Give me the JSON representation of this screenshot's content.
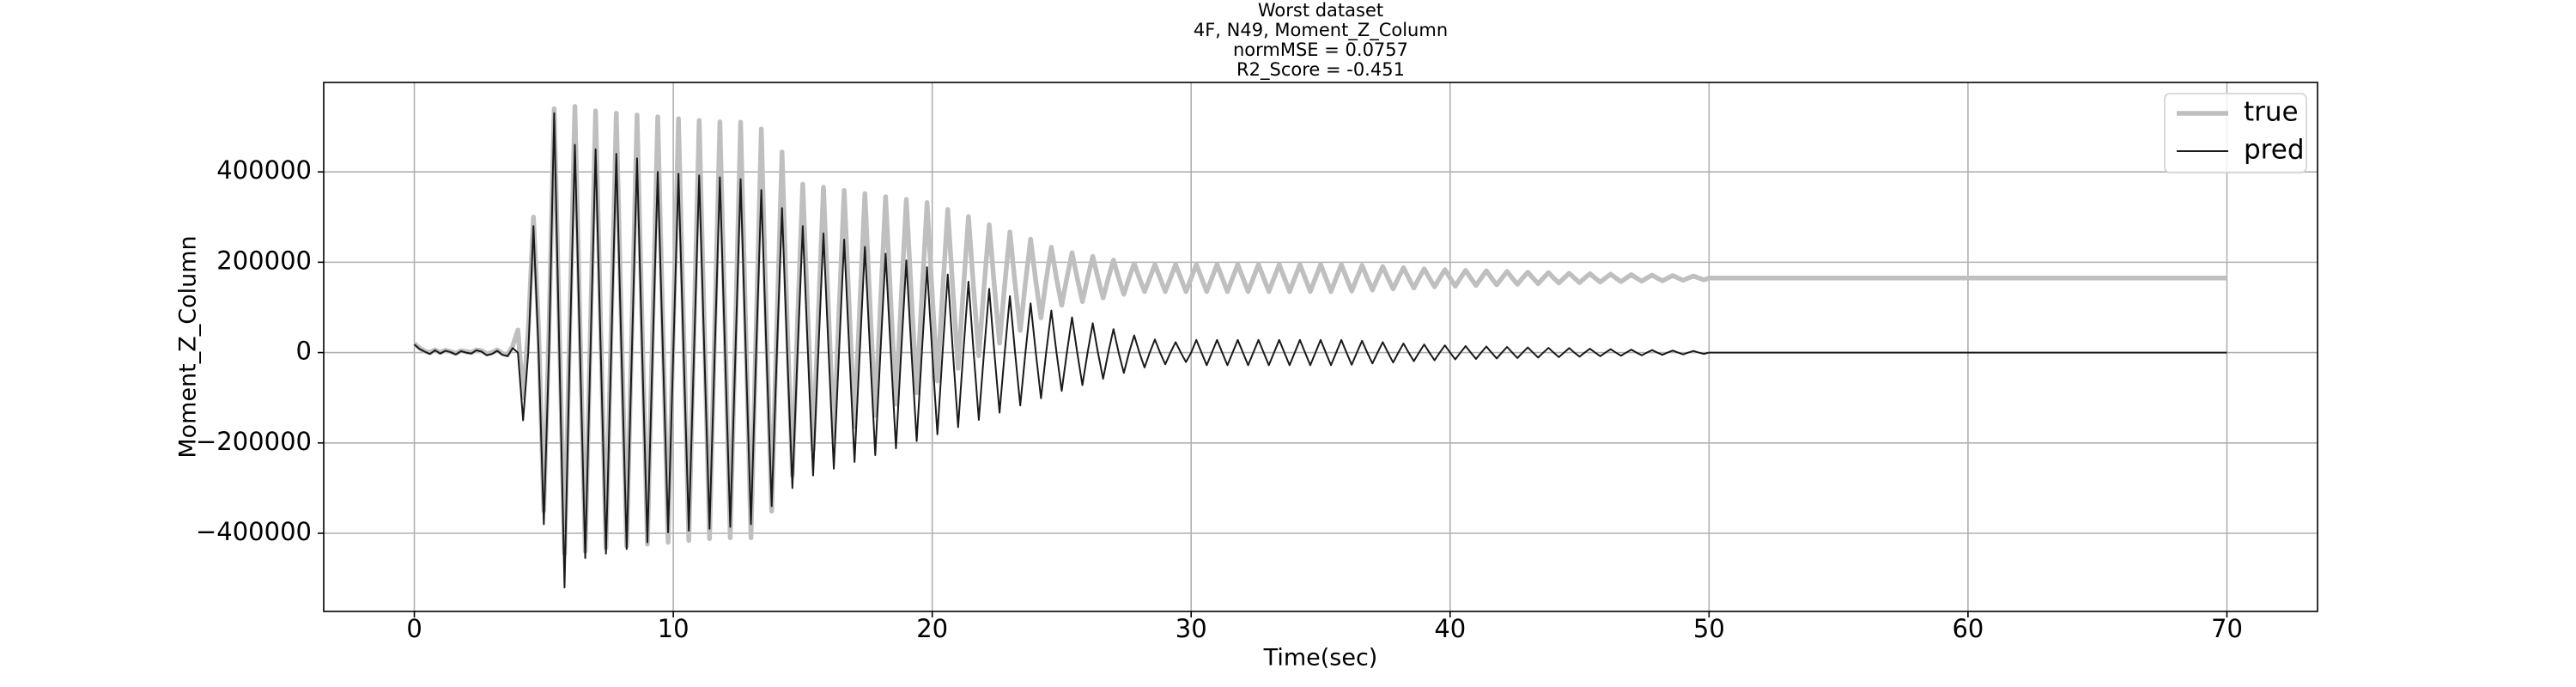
{
  "chart_data": {
    "type": "line",
    "title": [
      "Worst dataset",
      "4F, N49, Moment_Z_Column",
      "normMSE = 0.0757",
      "R2_Score = -0.451"
    ],
    "x_label": "Time(sec)",
    "y_label": "Moment_Z_Column",
    "xlim": [
      -3.5,
      73.5
    ],
    "xticks": [
      0,
      10,
      20,
      30,
      40,
      50,
      60,
      70
    ],
    "ylim": [
      -573000,
      598000
    ],
    "yticks": [
      {
        "value": -400000,
        "label": "−400000"
      },
      {
        "value": -200000,
        "label": "−200000"
      },
      0,
      200000,
      400000
    ],
    "grid": true,
    "legend": "upper right",
    "x": [
      0,
      0.2,
      0.4,
      0.6,
      0.8,
      1,
      1.2,
      1.4,
      1.6,
      1.8,
      2,
      2.2,
      2.4,
      2.6,
      2.8,
      3,
      3.2,
      3.4,
      3.6,
      3.8,
      4,
      4.2,
      4.4,
      4.6,
      4.8,
      5,
      5.2,
      5.4,
      5.6,
      5.8,
      6,
      6.2,
      6.4,
      6.6,
      6.8,
      7,
      7.2,
      7.4,
      7.6,
      7.8,
      8,
      8.2,
      8.4,
      8.6,
      8.8,
      9,
      9.2,
      9.4,
      9.6,
      9.8,
      10,
      10.2,
      10.4,
      10.6,
      10.8,
      11,
      11.2,
      11.4,
      11.6,
      11.8,
      12,
      12.2,
      12.4,
      12.6,
      12.8,
      13,
      13.2,
      13.4,
      13.6,
      13.8,
      14,
      14.2,
      14.4,
      14.6,
      14.8,
      15,
      15.2,
      15.4,
      15.6,
      15.8,
      16,
      16.2,
      16.4,
      16.6,
      16.8,
      17,
      17.2,
      17.4,
      17.6,
      17.8,
      18,
      18.2,
      18.4,
      18.6,
      18.8,
      19,
      19.2,
      19.4,
      19.6,
      19.8,
      20,
      20.2,
      20.4,
      20.6,
      20.8,
      21,
      21.2,
      21.4,
      21.6,
      21.8,
      22,
      22.2,
      22.4,
      22.6,
      22.8,
      23,
      23.2,
      23.4,
      23.6,
      23.8,
      24,
      24.2,
      24.4,
      24.6,
      24.8,
      25,
      25.2,
      25.4,
      25.6,
      25.8,
      26,
      26.2,
      26.4,
      26.6,
      26.8,
      27,
      27.2,
      27.4,
      27.6,
      27.8,
      28,
      28.2,
      28.4,
      28.6,
      28.8,
      29,
      29.2,
      29.4,
      29.6,
      29.8,
      30,
      30.2,
      30.4,
      30.6,
      30.8,
      31,
      31.2,
      31.4,
      31.6,
      31.8,
      32,
      32.2,
      32.4,
      32.6,
      32.8,
      33,
      33.2,
      33.4,
      33.6,
      33.8,
      34,
      34.2,
      34.4,
      34.6,
      34.8,
      35,
      35.2,
      35.4,
      35.6,
      35.8,
      36,
      36.2,
      36.4,
      36.6,
      36.8,
      37,
      37.2,
      37.4,
      37.6,
      37.8,
      38,
      38.2,
      38.4,
      38.6,
      38.8,
      39,
      39.2,
      39.4,
      39.6,
      39.8,
      40,
      40.2,
      40.4,
      40.6,
      40.8,
      41,
      41.2,
      41.4,
      41.6,
      41.8,
      42,
      42.2,
      42.4,
      42.6,
      42.8,
      43,
      43.2,
      43.4,
      43.6,
      43.8,
      44,
      44.2,
      44.4,
      44.6,
      44.8,
      45,
      45.2,
      45.4,
      45.6,
      45.8,
      46,
      46.2,
      46.4,
      46.6,
      46.8,
      47,
      47.2,
      47.4,
      47.6,
      47.8,
      48,
      48.2,
      48.4,
      48.6,
      48.8,
      49,
      49.2,
      49.4,
      49.6,
      49.8,
      50,
      51,
      52,
      53,
      54,
      55,
      56,
      57,
      58,
      59,
      60,
      61,
      62,
      63,
      64,
      65,
      66,
      67,
      68,
      69,
      70
    ],
    "series": [
      {
        "name": "true",
        "color": "#bfbfbf",
        "values": [
          20000,
          10000,
          3000,
          0,
          6000,
          0,
          5000,
          2000,
          -2000,
          4000,
          2000,
          0,
          6000,
          4000,
          -3000,
          0,
          6000,
          -2000,
          -5000,
          15000,
          50000,
          -100000,
          50000,
          300000,
          50000,
          -350000,
          50000,
          540000,
          50000,
          -445000,
          50000,
          545000,
          50000,
          -440000,
          50000,
          535000,
          50000,
          -432000,
          50000,
          530000,
          50000,
          -428000,
          50000,
          526000,
          50000,
          -424000,
          50000,
          522000,
          50000,
          -420000,
          50000,
          518000,
          50000,
          -416000,
          50000,
          514000,
          50000,
          -412000,
          50000,
          511000,
          50000,
          -410000,
          50000,
          510000,
          50000,
          -410000,
          52000,
          495000,
          57000,
          -351000,
          61000,
          444000,
          66000,
          -272000,
          71000,
          373000,
          75000,
          -215000,
          80000,
          366000,
          84000,
          -189000,
          89000,
          359000,
          93000,
          -164000,
          98000,
          352000,
          103000,
          -139000,
          107000,
          345000,
          112000,
          -114000,
          116000,
          339000,
          121000,
          -89000,
          125000,
          332000,
          130000,
          -63000,
          133000,
          317000,
          136000,
          -35000,
          138000,
          301000,
          141000,
          -7000,
          144000,
          283000,
          147000,
          21000,
          150000,
          267000,
          152000,
          49000,
          155000,
          251000,
          158000,
          77000,
          161000,
          233000,
          164000,
          105000,
          165000,
          221000,
          165000,
          113000,
          165000,
          213000,
          165000,
          121000,
          165000,
          205000,
          165000,
          129000,
          165000,
          197000,
          165000,
          135000,
          165000,
          195000,
          165000,
          135000,
          165000,
          195000,
          165000,
          135000,
          165000,
          195000,
          165000,
          135000,
          165000,
          195000,
          165000,
          135000,
          165000,
          195000,
          165000,
          135000,
          165000,
          195000,
          165000,
          135000,
          165000,
          195000,
          165000,
          135000,
          165000,
          195000,
          165000,
          135000,
          165000,
          195000,
          165000,
          135000,
          165000,
          195000,
          165000,
          136000,
          165000,
          193000,
          165000,
          138500,
          165000,
          190500,
          165000,
          141000,
          165000,
          188000,
          165000,
          143000,
          165000,
          185500,
          165000,
          145500,
          165000,
          183500,
          165000,
          147000,
          165000,
          182000,
          165000,
          148500,
          165000,
          181000,
          165000,
          150000,
          165000,
          179500,
          165000,
          151000,
          165000,
          178000,
          165000,
          152500,
          165000,
          177000,
          165000,
          154000,
          165000,
          175500,
          165000,
          155000,
          165000,
          174500,
          165000,
          156000,
          165000,
          173500,
          165000,
          157000,
          165000,
          172500,
          165000,
          158000,
          165000,
          171500,
          165000,
          159000,
          165000,
          170500,
          165000,
          160000,
          165000,
          169500,
          165000,
          161000,
          165000,
          165000,
          165000,
          165000,
          165000,
          165000,
          165000,
          165000,
          165000,
          165000,
          165000,
          165000,
          165000,
          165000,
          165000,
          165000,
          165000,
          165000,
          165000,
          165000,
          165000
        ]
      },
      {
        "name": "pred",
        "color": "#1a1a1a",
        "values": [
          18000,
          8000,
          2000,
          -3000,
          5000,
          -2000,
          4000,
          1000,
          -4000,
          3000,
          0,
          -2000,
          5000,
          2000,
          -6000,
          -3000,
          4000,
          -5000,
          -8000,
          10000,
          0,
          -150000,
          0,
          280000,
          0,
          -380000,
          0,
          530000,
          0,
          -520000,
          0,
          460000,
          0,
          -455000,
          0,
          450000,
          0,
          -445000,
          0,
          440000,
          0,
          -435000,
          0,
          430000,
          0,
          -420000,
          0,
          400000,
          0,
          -398000,
          0,
          396000,
          0,
          -394000,
          0,
          392000,
          0,
          -390000,
          0,
          388000,
          0,
          -386000,
          0,
          384000,
          0,
          -380000,
          0,
          360000,
          0,
          -340000,
          0,
          320000,
          0,
          -300000,
          0,
          280000,
          0,
          -272000,
          0,
          264000,
          0,
          -257000,
          0,
          250000,
          0,
          -242000,
          0,
          234000,
          0,
          -227000,
          0,
          219000,
          0,
          -212000,
          0,
          204000,
          0,
          -196000,
          0,
          189000,
          0,
          -181000,
          0,
          173000,
          0,
          -165000,
          0,
          157000,
          0,
          -149000,
          0,
          141000,
          0,
          -133000,
          0,
          125000,
          0,
          -117000,
          0,
          109000,
          0,
          -101000,
          0,
          93000,
          0,
          -85000,
          0,
          78000,
          0,
          -72000,
          0,
          65000,
          0,
          -58000,
          0,
          52000,
          0,
          -45000,
          0,
          38000,
          0,
          -33000,
          0,
          29000,
          0,
          -26000,
          0,
          23000,
          0,
          -21000,
          0,
          28000,
          0,
          -28000,
          0,
          28000,
          0,
          -28000,
          0,
          28000,
          0,
          -28000,
          0,
          28000,
          0,
          -28000,
          0,
          28000,
          0,
          -28000,
          0,
          28000,
          0,
          -28000,
          0,
          28000,
          0,
          -28000,
          0,
          28000,
          0,
          -27000,
          0,
          26000,
          0,
          -24000,
          0,
          23000,
          0,
          -22000,
          0,
          20000,
          0,
          -19000,
          0,
          18000,
          0,
          -17000,
          0,
          16000,
          0,
          -15000,
          0,
          14500,
          0,
          -14000,
          0,
          13500,
          0,
          -13000,
          0,
          12500,
          0,
          -12000,
          0,
          11500,
          0,
          -11000,
          0,
          10500,
          0,
          -10000,
          0,
          10000,
          0,
          -9000,
          0,
          8500,
          0,
          -8000,
          0,
          7500,
          0,
          -7000,
          0,
          6500,
          0,
          -6000,
          0,
          5500,
          0,
          -5000,
          0,
          4500,
          0,
          -4000,
          0,
          3500,
          0,
          -3000,
          0,
          0,
          0,
          0,
          0,
          0,
          0,
          0,
          0,
          0,
          0,
          0,
          0,
          0,
          0,
          0,
          0,
          0,
          0,
          0,
          0
        ]
      }
    ]
  }
}
